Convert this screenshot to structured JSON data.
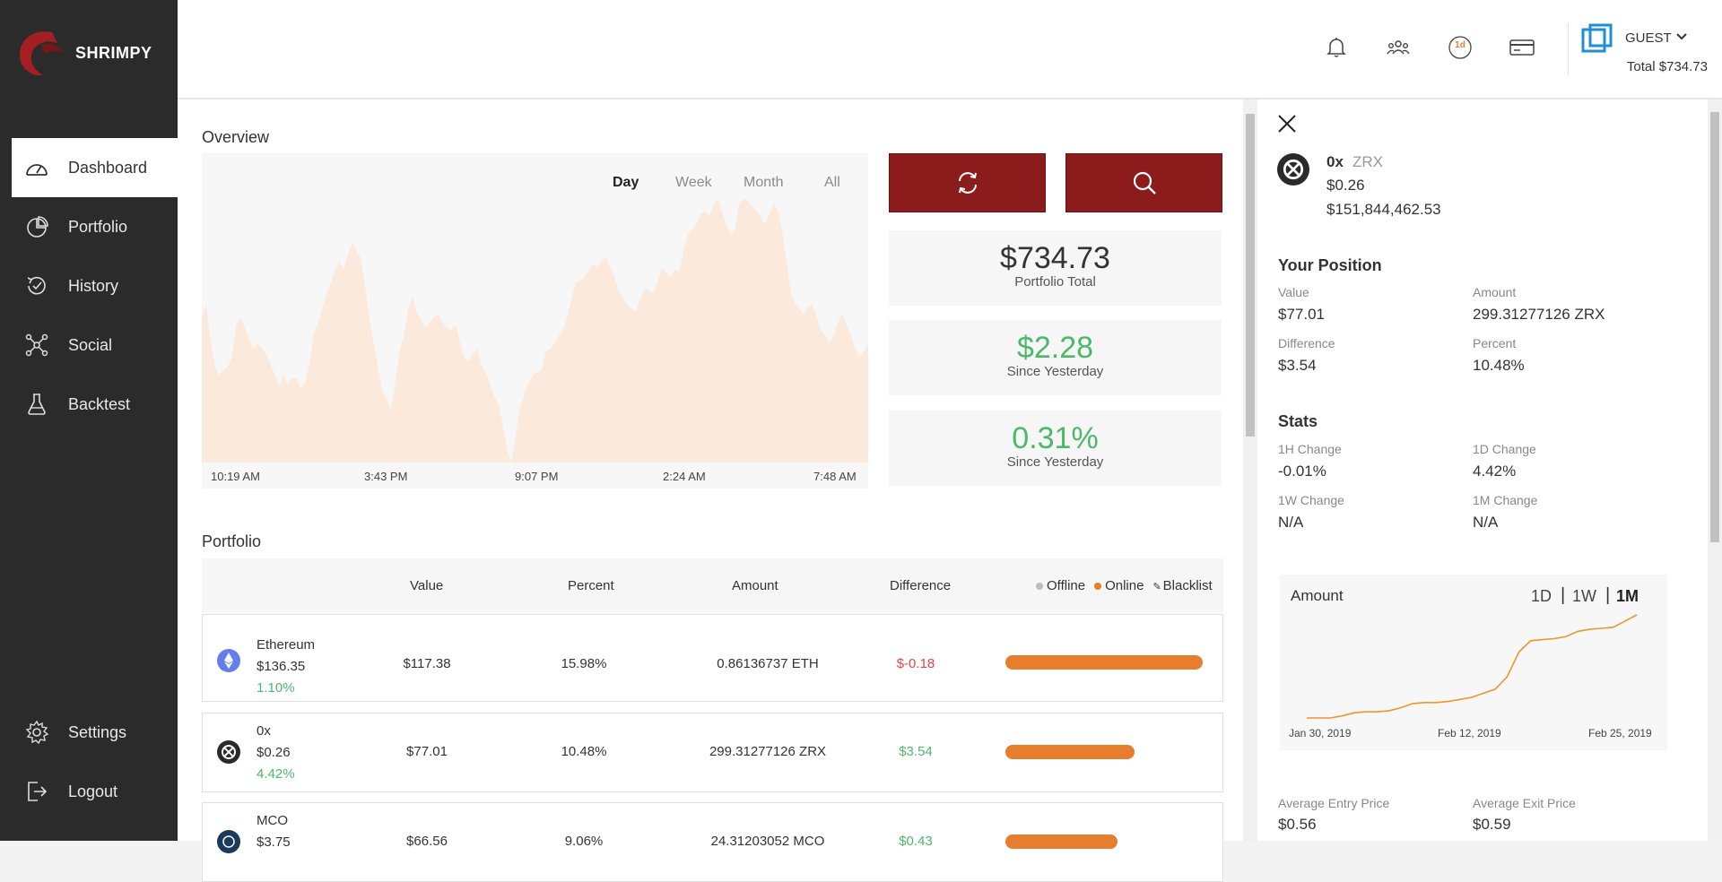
{
  "brand": {
    "name": "SHRIMPY"
  },
  "sidebar": {
    "items": [
      {
        "label": "Dashboard",
        "icon": "dashboard-icon",
        "active": true
      },
      {
        "label": "Portfolio",
        "icon": "pie-chart-icon"
      },
      {
        "label": "History",
        "icon": "history-icon"
      },
      {
        "label": "Social",
        "icon": "social-icon"
      },
      {
        "label": "Backtest",
        "icon": "flask-icon"
      }
    ],
    "bottom": [
      {
        "label": "Settings",
        "icon": "gear-icon"
      },
      {
        "label": "Logout",
        "icon": "logout-icon"
      }
    ]
  },
  "topbar": {
    "icons": [
      "bell-icon",
      "users-icon",
      "period-badge-icon",
      "card-icon"
    ],
    "period_badge": "1d",
    "user_name": "GUEST",
    "total": "Total $734.73"
  },
  "overview": {
    "title": "Overview",
    "ranges": [
      "Day",
      "Week",
      "Month",
      "All"
    ],
    "active_range": "Day",
    "chart_data": {
      "type": "area",
      "x_ticks": [
        "10:19 AM",
        "3:43 PM",
        "9:07 PM",
        "2:24 AM",
        "7:48 AM"
      ],
      "values": [
        0.55,
        0.6,
        0.47,
        0.37,
        0.33,
        0.35,
        0.36,
        0.4,
        0.52,
        0.55,
        0.51,
        0.47,
        0.43,
        0.45,
        0.43,
        0.41,
        0.37,
        0.33,
        0.29,
        0.33,
        0.3,
        0.32,
        0.32,
        0.28,
        0.3,
        0.37,
        0.48,
        0.53,
        0.58,
        0.64,
        0.68,
        0.73,
        0.76,
        0.73,
        0.79,
        0.83,
        0.8,
        0.77,
        0.66,
        0.55,
        0.45,
        0.36,
        0.27,
        0.24,
        0.2,
        0.3,
        0.42,
        0.48,
        0.58,
        0.63,
        0.57,
        0.54,
        0.51,
        0.53,
        0.55,
        0.56,
        0.53,
        0.51,
        0.5,
        0.52,
        0.46,
        0.4,
        0.38,
        0.41,
        0.43,
        0.37,
        0.34,
        0.3,
        0.25,
        0.22,
        0.15,
        0.05,
        0.0,
        0.1,
        0.2,
        0.26,
        0.3,
        0.33,
        0.34,
        0.35,
        0.42,
        0.43,
        0.45,
        0.48,
        0.5,
        0.55,
        0.62,
        0.68,
        0.69,
        0.7,
        0.73,
        0.75,
        0.74,
        0.76,
        0.78,
        0.74,
        0.7,
        0.65,
        0.62,
        0.6,
        0.58,
        0.57,
        0.62,
        0.66,
        0.65,
        0.64,
        0.68,
        0.74,
        0.72,
        0.7,
        0.73,
        0.72,
        0.8,
        0.86,
        0.88,
        0.9,
        0.94,
        0.95,
        0.93,
        0.97,
        1.0,
        0.95,
        0.9,
        0.86,
        0.88,
        0.98,
        1.0,
        0.99,
        0.97,
        0.95,
        0.93,
        0.9,
        0.94,
        0.98,
        0.95,
        0.88,
        0.76,
        0.65,
        0.6,
        0.58,
        0.56,
        0.59,
        0.6,
        0.55,
        0.5,
        0.48,
        0.45,
        0.48,
        0.53,
        0.56,
        0.52,
        0.48,
        0.43,
        0.4,
        0.42,
        0.45
      ],
      "ylim": [
        0,
        1
      ]
    }
  },
  "stats": {
    "total": {
      "value": "$734.73",
      "label": "Portfolio Total"
    },
    "change": {
      "value": "$2.28",
      "label": "Since Yesterday"
    },
    "percent": {
      "value": "0.31%",
      "label": "Since Yesterday"
    }
  },
  "portfolio": {
    "title": "Portfolio",
    "columns": [
      "Value",
      "Percent",
      "Amount",
      "Difference"
    ],
    "legend": [
      "Offline",
      "Online",
      "Blacklist"
    ],
    "colors": {
      "offline": "#bdbdbd",
      "online": "#e67e2e",
      "accent": "#8c1c1c"
    },
    "rows": [
      {
        "name": "Ethereum",
        "price": "$136.35",
        "change": "1.10%",
        "value": "$117.38",
        "percent": "15.98%",
        "amount": "0.86136737 ETH",
        "difference": "$-0.18",
        "diff_sign": "negative",
        "share": 0.1598,
        "icon": "ethereum-icon"
      },
      {
        "name": "0x",
        "price": "$0.26",
        "change": "4.42%",
        "value": "$77.01",
        "percent": "10.48%",
        "amount": "299.31277126 ZRX",
        "difference": "$3.54",
        "diff_sign": "positive",
        "share": 0.1048,
        "icon": "zrx-icon"
      },
      {
        "name": "MCO",
        "price": "$3.75",
        "change": "",
        "value": "$66.56",
        "percent": "9.06%",
        "amount": "24.31203052 MCO",
        "difference": "$0.43",
        "diff_sign": "positive",
        "share": 0.0906,
        "icon": "mco-icon"
      }
    ]
  },
  "panel": {
    "coin_symbol": "0x",
    "coin_ticker": "ZRX",
    "coin_price": "$0.26",
    "coin_marketcap": "$151,844,462.53",
    "position_title": "Your Position",
    "position": {
      "value_label": "Value",
      "value": "$77.01",
      "amount_label": "Amount",
      "amount": "299.31277126 ZRX",
      "difference_label": "Difference",
      "difference": "$3.54",
      "percent_label": "Percent",
      "percent": "10.48%"
    },
    "stats_title": "Stats",
    "stats": {
      "h1_label": "1H Change",
      "h1": "-0.01%",
      "d1_label": "1D Change",
      "d1": "4.42%",
      "w1_label": "1W Change",
      "w1": "N/A",
      "m1_label": "1M Change",
      "m1": "N/A"
    },
    "amount_chart": {
      "title": "Amount",
      "ranges": [
        "1D",
        "1W",
        "1M"
      ],
      "active_range": "1M",
      "chart_data": {
        "type": "line",
        "x_ticks": [
          "Jan 30, 2019",
          "Feb 12, 2019",
          "Feb 25, 2019"
        ],
        "values": [
          0.0,
          0.0,
          0.0,
          0.02,
          0.05,
          0.06,
          0.06,
          0.07,
          0.1,
          0.14,
          0.15,
          0.15,
          0.16,
          0.18,
          0.2,
          0.24,
          0.28,
          0.4,
          0.64,
          0.75,
          0.76,
          0.77,
          0.79,
          0.84,
          0.86,
          0.87,
          0.88,
          0.94,
          1.0
        ],
        "ylim": [
          0,
          1
        ]
      }
    },
    "avg_entry_label": "Average Entry Price",
    "avg_entry": "$0.56",
    "avg_exit_label": "Average Exit Price",
    "avg_exit": "$0.59"
  }
}
